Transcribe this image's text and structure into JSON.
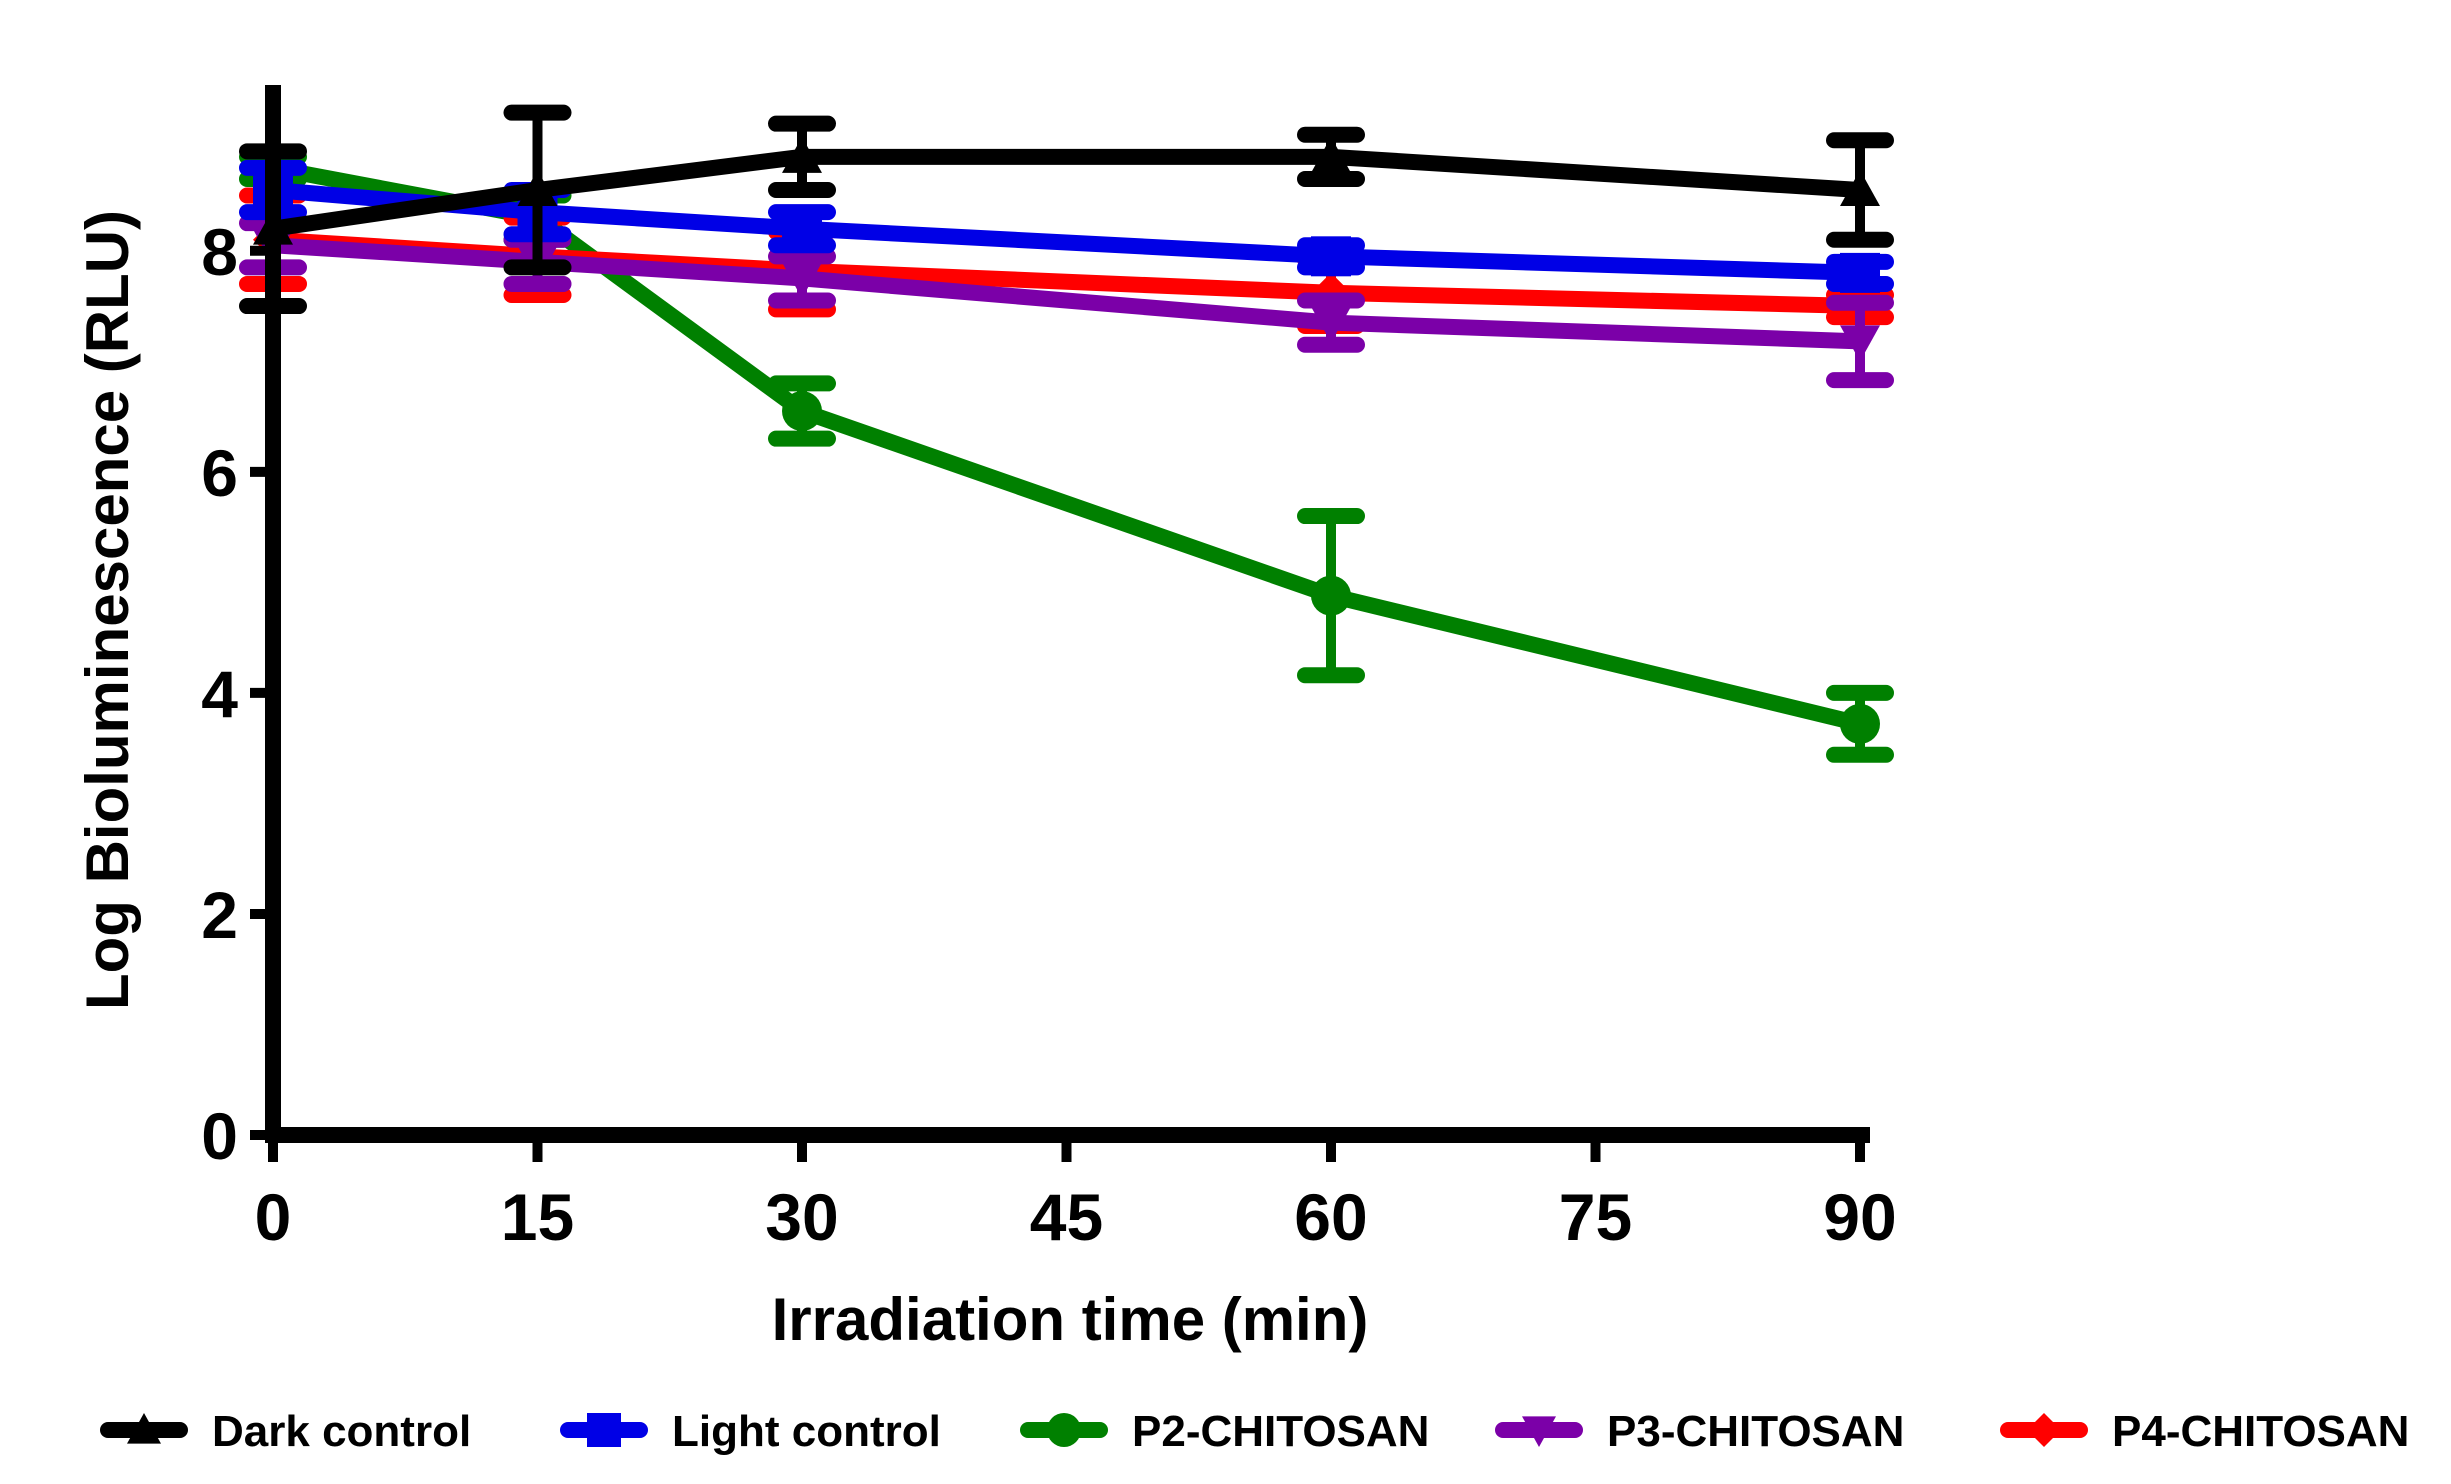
{
  "chart_data": {
    "type": "line",
    "title": "",
    "xlabel": "Irradiation time (min)",
    "ylabel": "Log Bioluminescence (RLU)",
    "xlim": [
      0,
      90
    ],
    "ylim": [
      0,
      9.5
    ],
    "xticks": [
      0,
      15,
      30,
      45,
      60,
      75,
      90
    ],
    "yticks": [
      0,
      2,
      4,
      6,
      8
    ],
    "grid": false,
    "legend_position": "bottom",
    "series": [
      {
        "name": "Dark control",
        "color": "#000000",
        "marker": "triangle-up",
        "x": [
          0,
          15,
          30,
          60,
          90
        ],
        "y": [
          8.2,
          8.55,
          8.85,
          8.85,
          8.55
        ],
        "err": [
          0.7,
          0.7,
          0.3,
          0.2,
          0.45
        ]
      },
      {
        "name": "Light control",
        "color": "#0000e6",
        "marker": "square",
        "x": [
          0,
          15,
          30,
          60,
          90
        ],
        "y": [
          8.55,
          8.35,
          8.2,
          7.95,
          7.8
        ],
        "err": [
          0.2,
          0.2,
          0.15,
          0.1,
          0.1
        ]
      },
      {
        "name": "P2-CHITOSAN",
        "color": "#008000",
        "marker": "circle",
        "x": [
          0,
          15,
          30,
          60,
          90
        ],
        "y": [
          8.75,
          8.3,
          6.55,
          4.88,
          3.72
        ],
        "err": [
          0.1,
          0.2,
          0.25,
          0.72,
          0.28
        ]
      },
      {
        "name": "P3-CHITOSAN",
        "color": "#7b00a8",
        "marker": "triangle-down",
        "x": [
          0,
          15,
          30,
          60,
          90
        ],
        "y": [
          8.05,
          7.9,
          7.75,
          7.35,
          7.18
        ],
        "err": [
          0.2,
          0.2,
          0.2,
          0.2,
          0.35
        ]
      },
      {
        "name": "P4-CHITOSAN",
        "color": "#ff0000",
        "marker": "diamond",
        "x": [
          0,
          15,
          30,
          60,
          90
        ],
        "y": [
          8.1,
          7.95,
          7.82,
          7.62,
          7.5
        ],
        "err": [
          0.4,
          0.35,
          0.35,
          0.3,
          0.1
        ]
      }
    ]
  }
}
